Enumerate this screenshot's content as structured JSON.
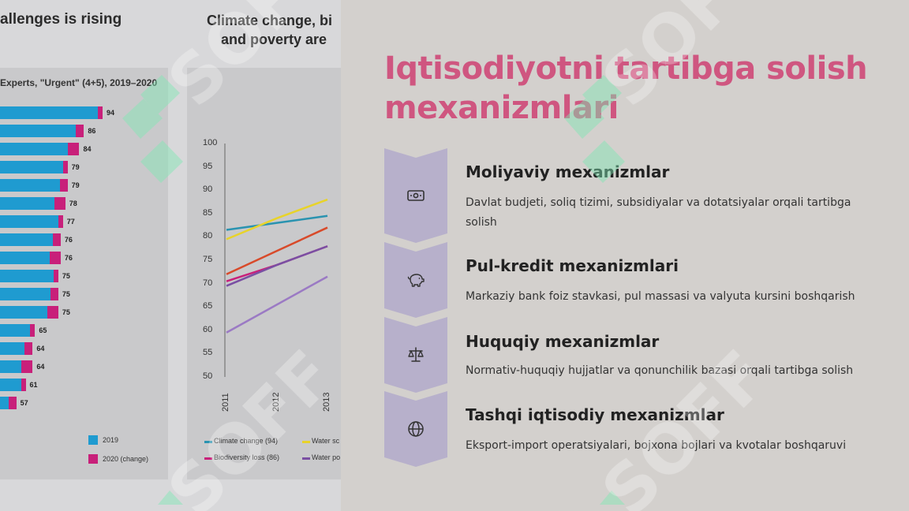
{
  "background_chart": {
    "left_title": "allenges is rising",
    "right_title_line1": "Climate change, bi",
    "right_title_line2": "and poverty are",
    "bar_panel": {
      "subtitle": "Experts, \"Urgent\" (4+5), 2019–2020",
      "bars": [
        {
          "value": "94"
        },
        {
          "value": "86"
        },
        {
          "value": "84"
        },
        {
          "value": "79"
        },
        {
          "value": "79"
        },
        {
          "value": "78"
        },
        {
          "value": "77"
        },
        {
          "value": "76"
        },
        {
          "value": "76"
        },
        {
          "value": "75"
        },
        {
          "value": "75"
        },
        {
          "value": "75"
        },
        {
          "value": "65"
        },
        {
          "value": "64"
        },
        {
          "value": "64"
        },
        {
          "value": "61"
        },
        {
          "value": "57"
        }
      ],
      "legend": [
        {
          "label": "2019",
          "color": "#1f9bd0"
        },
        {
          "label": "2020 (change)",
          "color": "#c8207a"
        }
      ]
    },
    "line_panel": {
      "y_ticks": [
        "100",
        "95",
        "90",
        "85",
        "80",
        "75",
        "70",
        "65",
        "60",
        "55",
        "50"
      ],
      "x_ticks": [
        "2011",
        "2012",
        "2013"
      ],
      "legend": [
        {
          "label": "Climate change (94)",
          "color": "#2a93b0"
        },
        {
          "label": "Water sc",
          "color": "#e8d32a"
        },
        {
          "label": "Biodiversity loss (86)",
          "color": "#c8207a"
        },
        {
          "label": "Water po",
          "color": "#7a4fa3"
        }
      ]
    }
  },
  "slide": {
    "title": "Iqtisodiyotni tartibga solish mexanizmlari",
    "items": [
      {
        "icon": "banknote-icon",
        "heading": "Moliyaviy mexanizmlar",
        "description": "Davlat budjeti, soliq tizimi, subsidiyalar va dotatsiyalar orqali tartibga solish"
      },
      {
        "icon": "piggy-bank-icon",
        "heading": "Pul-kredit mexanizmlari",
        "description": "Markaziy bank foiz stavkasi, pul massasi va valyuta kursini boshqarish"
      },
      {
        "icon": "scales-icon",
        "heading": "Huquqiy mexanizmlar",
        "description": "Normativ-huquqiy hujjatlar va qonunchilik bazasi orqali tartibga solish"
      },
      {
        "icon": "globe-icon",
        "heading": "Tashqi iqtisodiy mexanizmlar",
        "description": "Eksport-import operatsiyalari, bojxona bojlari va kvotalar boshqaruvi"
      }
    ],
    "chevron_color": "#b7b0cb"
  },
  "watermark": {
    "text": "SOFF",
    "color": "#7fe8b4"
  }
}
